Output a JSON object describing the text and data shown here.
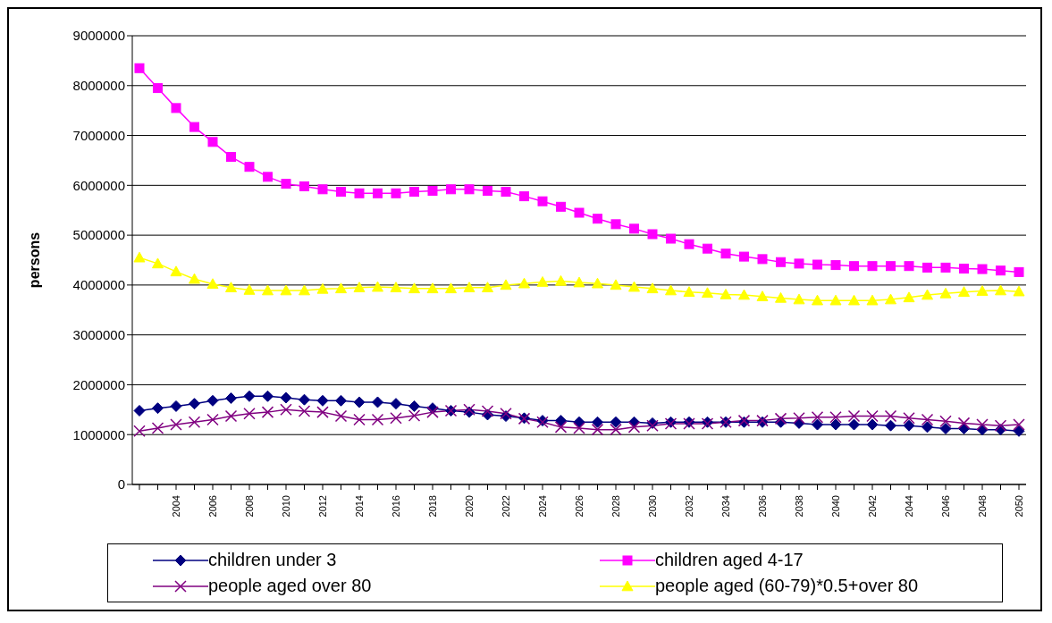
{
  "chart_data": {
    "type": "line",
    "ylabel": "persons",
    "categories": [
      null,
      null,
      "2004",
      null,
      "2006",
      null,
      "2008",
      null,
      "2010",
      null,
      "2012",
      null,
      "2014",
      null,
      "2016",
      null,
      "2018",
      null,
      "2020",
      null,
      "2022",
      null,
      "2024",
      null,
      "2026",
      null,
      "2028",
      null,
      "2030",
      null,
      "2032",
      null,
      "2034",
      null,
      "2036",
      null,
      "2038",
      null,
      "2040",
      null,
      "2042",
      null,
      "2044",
      null,
      "2046",
      null,
      "2048",
      null,
      "2050"
    ],
    "ylim": [
      0,
      9000000
    ],
    "yticks": [
      0,
      1000000,
      2000000,
      3000000,
      4000000,
      5000000,
      6000000,
      7000000,
      8000000,
      9000000
    ],
    "grid": "y",
    "legend": "bottom",
    "line_style": "solid",
    "series": [
      {
        "name": "children under 3",
        "color": "#000080",
        "marker": "diamond",
        "values": [
          1480000,
          1530000,
          1570000,
          1620000,
          1680000,
          1730000,
          1770000,
          1770000,
          1740000,
          1700000,
          1680000,
          1680000,
          1650000,
          1650000,
          1620000,
          1570000,
          1530000,
          1480000,
          1450000,
          1400000,
          1370000,
          1330000,
          1280000,
          1280000,
          1250000,
          1250000,
          1250000,
          1250000,
          1230000,
          1250000,
          1250000,
          1250000,
          1250000,
          1250000,
          1250000,
          1250000,
          1230000,
          1200000,
          1200000,
          1200000,
          1200000,
          1180000,
          1180000,
          1150000,
          1120000,
          1120000,
          1100000,
          1100000,
          1070000
        ]
      },
      {
        "name": "children aged 4-17",
        "color": "#ff00ff",
        "marker": "square",
        "values": [
          8350000,
          7950000,
          7550000,
          7170000,
          6870000,
          6570000,
          6370000,
          6170000,
          6030000,
          5980000,
          5920000,
          5870000,
          5840000,
          5840000,
          5840000,
          5870000,
          5890000,
          5920000,
          5920000,
          5890000,
          5870000,
          5780000,
          5680000,
          5570000,
          5450000,
          5330000,
          5220000,
          5130000,
          5020000,
          4930000,
          4820000,
          4730000,
          4630000,
          4570000,
          4520000,
          4460000,
          4430000,
          4410000,
          4400000,
          4380000,
          4380000,
          4380000,
          4380000,
          4350000,
          4350000,
          4330000,
          4320000,
          4290000,
          4260000
        ]
      },
      {
        "name": "people aged over 80",
        "color": "#800080",
        "marker": "cross",
        "values": [
          1070000,
          1130000,
          1200000,
          1250000,
          1300000,
          1370000,
          1420000,
          1450000,
          1500000,
          1470000,
          1450000,
          1370000,
          1300000,
          1300000,
          1330000,
          1380000,
          1450000,
          1480000,
          1500000,
          1470000,
          1420000,
          1320000,
          1250000,
          1150000,
          1130000,
          1100000,
          1100000,
          1150000,
          1180000,
          1220000,
          1220000,
          1220000,
          1250000,
          1280000,
          1280000,
          1320000,
          1330000,
          1350000,
          1350000,
          1370000,
          1370000,
          1370000,
          1330000,
          1300000,
          1270000,
          1230000,
          1200000,
          1180000,
          1200000
        ]
      },
      {
        "name": "people aged (60-79)*0.5+over 80",
        "color": "#ffff00",
        "marker": "triangle",
        "values": [
          4550000,
          4430000,
          4270000,
          4120000,
          4020000,
          3950000,
          3900000,
          3890000,
          3890000,
          3890000,
          3920000,
          3930000,
          3950000,
          3960000,
          3950000,
          3930000,
          3930000,
          3930000,
          3950000,
          3950000,
          4000000,
          4030000,
          4060000,
          4080000,
          4050000,
          4030000,
          4000000,
          3960000,
          3930000,
          3890000,
          3860000,
          3840000,
          3810000,
          3800000,
          3770000,
          3740000,
          3710000,
          3690000,
          3690000,
          3690000,
          3690000,
          3710000,
          3750000,
          3800000,
          3830000,
          3860000,
          3880000,
          3890000,
          3870000
        ]
      }
    ]
  }
}
